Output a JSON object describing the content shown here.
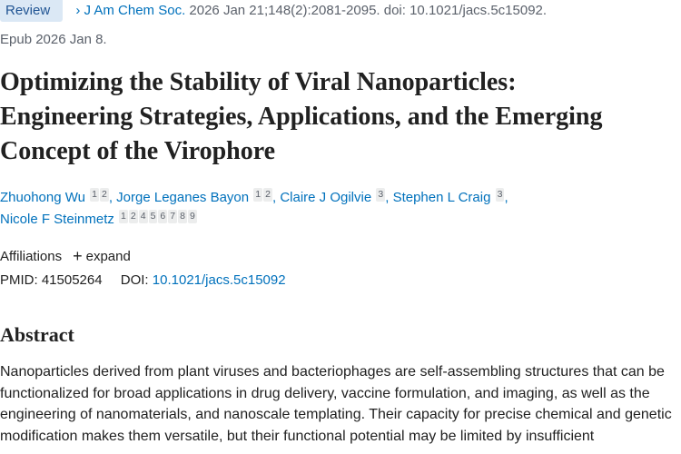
{
  "header": {
    "publication_type": "Review",
    "journal": "J Am Chem Soc.",
    "citation": "2026 Jan 21;148(2):2081-2095. doi: 10.1021/jacs.5c15092.",
    "epub": "Epub 2026 Jan 8."
  },
  "title": "Optimizing the Stability of Viral Nanoparticles: Engineering Strategies, Applications, and the Emerging Concept of the Virophore",
  "authors": {
    "separator": ",",
    "list": [
      {
        "name": "Zhuohong Wu",
        "affiliations": [
          "1",
          "2"
        ]
      },
      {
        "name": "Jorge Leganes Bayon",
        "affiliations": [
          "1",
          "2"
        ]
      },
      {
        "name": "Claire J Ogilvie",
        "affiliations": [
          "3"
        ]
      },
      {
        "name": "Stephen L Craig",
        "affiliations": [
          "3"
        ]
      },
      {
        "name": "Nicole F Steinmetz",
        "affiliations": [
          "1",
          "2",
          "4",
          "5",
          "6",
          "7",
          "8",
          "9"
        ]
      }
    ]
  },
  "affiliations": {
    "label": "Affiliations",
    "toggle": "expand"
  },
  "identifiers": {
    "pmid_label": "PMID:",
    "pmid": "41505264",
    "doi_label": "DOI:",
    "doi": "10.1021/jacs.5c15092"
  },
  "abstract": {
    "heading": "Abstract",
    "text": "Nanoparticles derived from plant viruses and bacteriophages are self-assembling structures that can be functionalized for broad applications in drug delivery, vaccine formulation, and imaging, as well as the engineering of nanomaterials, and nanoscale templating. Their capacity for precise chemical and genetic modification makes them versatile, but their functional potential may be limited by insufficient"
  }
}
